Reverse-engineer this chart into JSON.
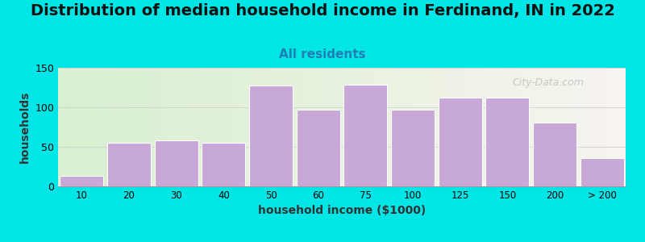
{
  "title": "Distribution of median household income in Ferdinand, IN in 2022",
  "subtitle": "All residents",
  "xlabel": "household income ($1000)",
  "ylabel": "households",
  "bar_labels": [
    "10",
    "20",
    "30",
    "40",
    "50",
    "60",
    "75",
    "100",
    "125",
    "150",
    "200",
    "> 200"
  ],
  "bar_heights": [
    13,
    55,
    58,
    55,
    128,
    97,
    129,
    97,
    112,
    112,
    81,
    36
  ],
  "bar_color": "#c8a8d8",
  "bar_edge_color": "#ffffff",
  "background_color": "#00e5e5",
  "plot_bg_gradient_left": "#d8f0d0",
  "plot_bg_gradient_right": "#f8f4f0",
  "ylim": [
    0,
    150
  ],
  "yticks": [
    0,
    50,
    100,
    150
  ],
  "title_fontsize": 14,
  "subtitle_fontsize": 11,
  "subtitle_color": "#2080b0",
  "axis_label_fontsize": 10,
  "watermark": "City-Data.com"
}
